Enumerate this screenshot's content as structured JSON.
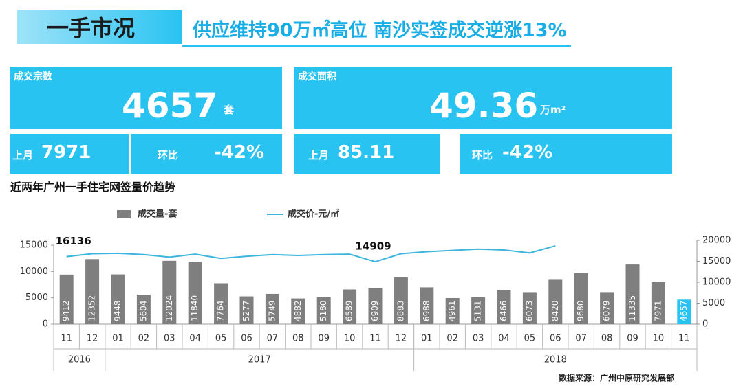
{
  "header": {
    "section": "一手市况",
    "title": "供应维持90万㎡高位 南沙实签成交逆涨13%"
  },
  "kpis": {
    "count": {
      "label": "成交宗数",
      "value": "4657",
      "unit": "套",
      "prev_label": "上月",
      "prev": "7971",
      "change_label": "环比",
      "change": "-42%"
    },
    "area": {
      "label": "成交面积",
      "value": "49.36",
      "unit": "万m²",
      "prev_label": "上月",
      "prev": "85.11",
      "change_label": "环比",
      "change": "-42%"
    }
  },
  "chart_data": {
    "type": "bar",
    "title": "近两年广州一手住宅网签量价趋势",
    "categories": [
      "11",
      "12",
      "01",
      "02",
      "03",
      "04",
      "05",
      "06",
      "07",
      "08",
      "09",
      "10",
      "11",
      "12",
      "01",
      "02",
      "03",
      "04",
      "05",
      "06",
      "07",
      "08",
      "09",
      "10",
      "11"
    ],
    "x_groups": [
      {
        "label": "2016",
        "start": 0,
        "end": 1
      },
      {
        "label": "2017",
        "start": 2,
        "end": 13
      },
      {
        "label": "2018",
        "start": 14,
        "end": 24
      }
    ],
    "series": [
      {
        "name": "成交量-套",
        "type": "bar",
        "color": "#7f7f7f",
        "highlight": {
          "index": 24,
          "color": "#29c3f2"
        },
        "values": [
          9412,
          12352,
          9448,
          5604,
          12024,
          11840,
          7764,
          5277,
          5749,
          4882,
          5180,
          6589,
          6909,
          8883,
          6988,
          4961,
          5131,
          6466,
          6073,
          8420,
          9680,
          6079,
          11335,
          7971,
          4657
        ]
      },
      {
        "name": "成交价-元/㎡",
        "type": "line",
        "axis": "y2",
        "color": "#3bb4de",
        "values": [
          16136,
          16800,
          16900,
          16600,
          16000,
          16700,
          15700,
          16200,
          16600,
          16400,
          16600,
          16700,
          14909,
          16800,
          17300,
          17600,
          17900,
          17700,
          17000,
          18700,
          null,
          null,
          null,
          null,
          null
        ],
        "annotated": [
          0,
          12
        ]
      }
    ],
    "ylim": [
      0,
      15000
    ],
    "yticks": [
      0,
      5000,
      10000,
      15000
    ],
    "y2lim": [
      0,
      20000
    ],
    "y2ticks": [
      0,
      5000,
      10000,
      15000,
      20000
    ],
    "source": "数据来源：广州中原研究发展部"
  }
}
